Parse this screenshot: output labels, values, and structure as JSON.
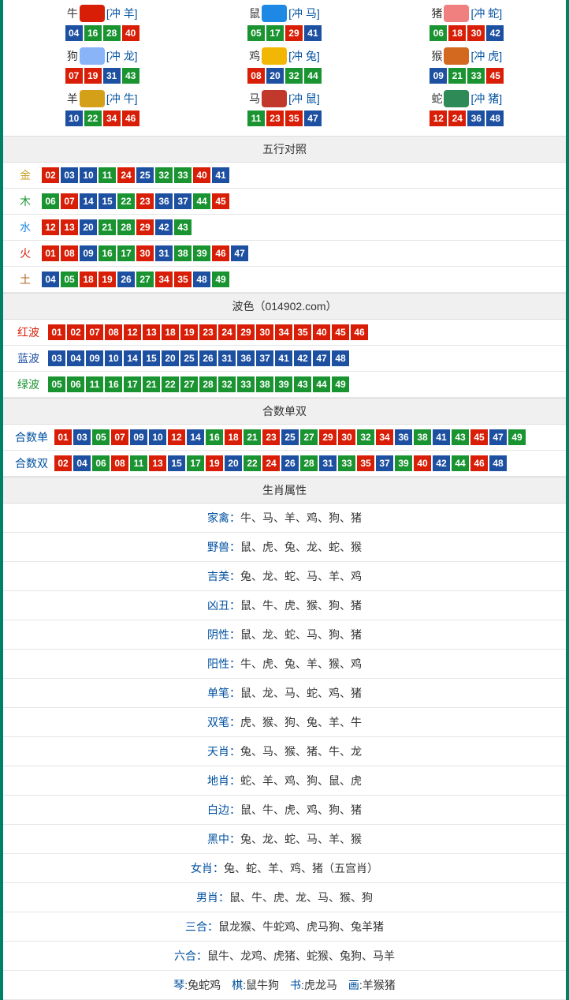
{
  "colors": {
    "border": "#008066",
    "red": "#d81e06",
    "blue": "#1e50a2",
    "green": "#1a9431",
    "header_bg": "#f0f0f0",
    "divider": "#e6e6e6",
    "link_blue": "#0050a0",
    "text": "#333333",
    "gold": "#c9a227",
    "wood": "#1a9431",
    "water": "#1e88e5",
    "fire": "#d81e06",
    "earth": "#b5651d",
    "red_label": "#d81e06",
    "blue_label": "#1e50a2",
    "green_label": "#1a9431"
  },
  "ball_color_map": {
    "red": [
      "01",
      "02",
      "07",
      "08",
      "12",
      "13",
      "18",
      "19",
      "23",
      "24",
      "29",
      "30",
      "34",
      "35",
      "40",
      "45",
      "46"
    ],
    "blue": [
      "03",
      "04",
      "09",
      "10",
      "14",
      "15",
      "20",
      "25",
      "26",
      "31",
      "36",
      "37",
      "41",
      "42",
      "47",
      "48"
    ],
    "green": [
      "05",
      "06",
      "11",
      "16",
      "17",
      "21",
      "22",
      "27",
      "28",
      "32",
      "33",
      "38",
      "39",
      "43",
      "44",
      "49"
    ]
  },
  "zodiac": [
    {
      "name": "牛",
      "chong": "[冲 羊]",
      "icon_color": "#d81e06",
      "balls": [
        "04",
        "16",
        "28",
        "40"
      ]
    },
    {
      "name": "鼠",
      "chong": "[冲 马]",
      "icon_color": "#1e88e5",
      "balls": [
        "05",
        "17",
        "29",
        "41"
      ]
    },
    {
      "name": "猪",
      "chong": "[冲 蛇]",
      "icon_color": "#f08080",
      "balls": [
        "06",
        "18",
        "30",
        "42"
      ]
    },
    {
      "name": "狗",
      "chong": "[冲 龙]",
      "icon_color": "#8ab4f8",
      "balls": [
        "07",
        "19",
        "31",
        "43"
      ]
    },
    {
      "name": "鸡",
      "chong": "[冲 兔]",
      "icon_color": "#f2b705",
      "balls": [
        "08",
        "20",
        "32",
        "44"
      ]
    },
    {
      "name": "猴",
      "chong": "[冲 虎]",
      "icon_color": "#d2691e",
      "balls": [
        "09",
        "21",
        "33",
        "45"
      ]
    },
    {
      "name": "羊",
      "chong": "[冲 牛]",
      "icon_color": "#d4a017",
      "balls": [
        "10",
        "22",
        "34",
        "46"
      ]
    },
    {
      "name": "马",
      "chong": "[冲 鼠]",
      "icon_color": "#c0392b",
      "balls": [
        "11",
        "23",
        "35",
        "47"
      ]
    },
    {
      "name": "蛇",
      "chong": "[冲 猪]",
      "icon_color": "#2e8b57",
      "balls": [
        "12",
        "24",
        "36",
        "48"
      ]
    }
  ],
  "wuxing": {
    "title": "五行对照",
    "rows": [
      {
        "label": "金",
        "label_color": "#c9a227",
        "balls": [
          "02",
          "03",
          "10",
          "11",
          "24",
          "25",
          "32",
          "33",
          "40",
          "41"
        ]
      },
      {
        "label": "木",
        "label_color": "#1a9431",
        "balls": [
          "06",
          "07",
          "14",
          "15",
          "22",
          "23",
          "36",
          "37",
          "44",
          "45"
        ]
      },
      {
        "label": "水",
        "label_color": "#1e88e5",
        "balls": [
          "12",
          "13",
          "20",
          "21",
          "28",
          "29",
          "42",
          "43"
        ]
      },
      {
        "label": "火",
        "label_color": "#d81e06",
        "balls": [
          "01",
          "08",
          "09",
          "16",
          "17",
          "30",
          "31",
          "38",
          "39",
          "46",
          "47"
        ]
      },
      {
        "label": "土",
        "label_color": "#b5651d",
        "balls": [
          "04",
          "05",
          "18",
          "19",
          "26",
          "27",
          "34",
          "35",
          "48",
          "49"
        ]
      }
    ]
  },
  "bose": {
    "title": "波色（014902.com）",
    "rows": [
      {
        "label": "红波",
        "label_color": "#d81e06",
        "balls": [
          "01",
          "02",
          "07",
          "08",
          "12",
          "13",
          "18",
          "19",
          "23",
          "24",
          "29",
          "30",
          "34",
          "35",
          "40",
          "45",
          "46"
        ]
      },
      {
        "label": "蓝波",
        "label_color": "#1e50a2",
        "balls": [
          "03",
          "04",
          "09",
          "10",
          "14",
          "15",
          "20",
          "25",
          "26",
          "31",
          "36",
          "37",
          "41",
          "42",
          "47",
          "48"
        ]
      },
      {
        "label": "绿波",
        "label_color": "#1a9431",
        "balls": [
          "05",
          "06",
          "11",
          "16",
          "17",
          "21",
          "22",
          "27",
          "28",
          "32",
          "33",
          "38",
          "39",
          "43",
          "44",
          "49"
        ]
      }
    ]
  },
  "heshu": {
    "title": "合数单双",
    "rows": [
      {
        "label": "合数单",
        "label_color": "#0050a0",
        "balls": [
          "01",
          "03",
          "05",
          "07",
          "09",
          "10",
          "12",
          "14",
          "16",
          "18",
          "21",
          "23",
          "25",
          "27",
          "29",
          "30",
          "32",
          "34",
          "36",
          "38",
          "41",
          "43",
          "45",
          "47",
          "49"
        ]
      },
      {
        "label": "合数双",
        "label_color": "#0050a0",
        "balls": [
          "02",
          "04",
          "06",
          "08",
          "11",
          "13",
          "15",
          "17",
          "19",
          "20",
          "22",
          "24",
          "26",
          "28",
          "31",
          "33",
          "35",
          "37",
          "39",
          "40",
          "42",
          "44",
          "46",
          "48"
        ]
      }
    ]
  },
  "shengxiao": {
    "title": "生肖属性",
    "rows": [
      {
        "key": "家禽",
        "sep": "：",
        "val": "牛、马、羊、鸡、狗、猪"
      },
      {
        "key": "野兽",
        "sep": "：",
        "val": "鼠、虎、兔、龙、蛇、猴"
      },
      {
        "key": "吉美",
        "sep": "：",
        "val": "兔、龙、蛇、马、羊、鸡"
      },
      {
        "key": "凶丑",
        "sep": "：",
        "val": "鼠、牛、虎、猴、狗、猪"
      },
      {
        "key": "阴性",
        "sep": "：",
        "val": "鼠、龙、蛇、马、狗、猪"
      },
      {
        "key": "阳性",
        "sep": "：",
        "val": "牛、虎、兔、羊、猴、鸡"
      },
      {
        "key": "单笔",
        "sep": "：",
        "val": "鼠、龙、马、蛇、鸡、猪"
      },
      {
        "key": "双笔",
        "sep": "：",
        "val": "虎、猴、狗、兔、羊、牛"
      },
      {
        "key": "天肖",
        "sep": "：",
        "val": "兔、马、猴、猪、牛、龙"
      },
      {
        "key": "地肖",
        "sep": "：",
        "val": "蛇、羊、鸡、狗、鼠、虎"
      },
      {
        "key": "白边",
        "sep": "：",
        "val": "鼠、牛、虎、鸡、狗、猪"
      },
      {
        "key": "黑中",
        "sep": "：",
        "val": "兔、龙、蛇、马、羊、猴"
      },
      {
        "key": "女肖",
        "sep": "：",
        "val": "兔、蛇、羊、鸡、猪（五宫肖）"
      },
      {
        "key": "男肖",
        "sep": "：",
        "val": "鼠、牛、虎、龙、马、猴、狗"
      },
      {
        "key": "三合",
        "sep": "：",
        "val": "鼠龙猴、牛蛇鸡、虎马狗、兔羊猪"
      },
      {
        "key": "六合",
        "sep": "：",
        "val": "鼠牛、龙鸡、虎猪、蛇猴、兔狗、马羊"
      }
    ],
    "last_line": [
      {
        "key": "琴",
        "val": ":兔蛇鸡"
      },
      {
        "key": "棋",
        "val": ":鼠牛狗"
      },
      {
        "key": "书",
        "val": ":虎龙马"
      },
      {
        "key": "画",
        "val": ":羊猴猪"
      }
    ]
  }
}
